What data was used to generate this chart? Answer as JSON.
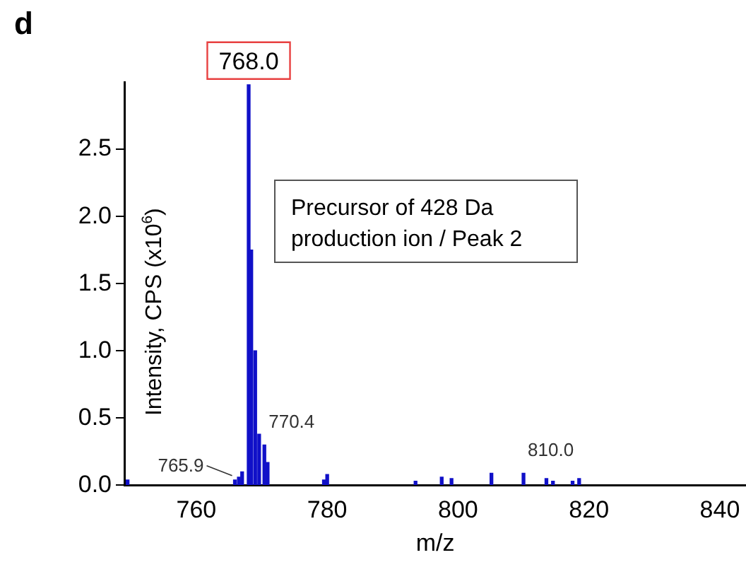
{
  "chart_data": {
    "type": "bar",
    "title": "d",
    "xlabel": "m/z",
    "ylabel": "Intensity, CPS (x10$^{6}$)",
    "x": [
      749.5,
      765.9,
      766.5,
      767.0,
      768.0,
      768.4,
      769.0,
      769.6,
      770.4,
      770.9,
      779.5,
      780.0,
      793.5,
      797.5,
      799.0,
      805.1,
      810.0,
      813.5,
      814.5,
      817.5,
      818.5
    ],
    "series": [
      {
        "color": "#1010c8",
        "values": [
          0.04,
          0.04,
          0.06,
          0.1,
          2.98,
          1.75,
          1.0,
          0.38,
          0.3,
          0.17,
          0.04,
          0.08,
          0.03,
          0.06,
          0.05,
          0.09,
          0.09,
          0.05,
          0.03,
          0.03,
          0.05
        ]
      }
    ],
    "xlim": [
      749,
      844
    ],
    "xticks": [
      760,
      780,
      800,
      820,
      840
    ],
    "ylim": [
      0,
      3.0
    ],
    "yticks": [
      {
        "value": 0,
        "label": "0.0"
      },
      0.5,
      {
        "value": 1,
        "label": "1.0"
      },
      1.5,
      {
        "value": 2,
        "label": "2.0"
      },
      2.5
    ],
    "annotations": [
      {
        "text": "768.0",
        "x": 768.0,
        "y": 2.98
      },
      {
        "text": "765.9",
        "x": 765.9,
        "y": 0.04
      },
      {
        "text": "770.4",
        "x": 770.4,
        "y": 0.3
      },
      {
        "text": "810.0",
        "x": 810.0,
        "y": 0.09
      },
      "Precursor of 428 Da production ion / Peak 2"
    ],
    "grid": false,
    "legend": false
  }
}
